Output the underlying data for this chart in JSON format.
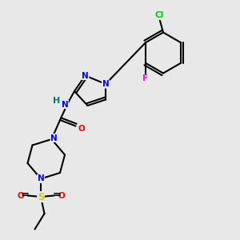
{
  "bg_color": "#e8e8e8",
  "bond_color": "#000000",
  "bond_width": 1.5,
  "atom_colors": {
    "N": "#0000ff",
    "O": "#ff0000",
    "S": "#cccc00",
    "F": "#ff00ff",
    "Cl": "#00cc00",
    "H": "#007777",
    "C": "#000000"
  },
  "font_size": 7.5
}
